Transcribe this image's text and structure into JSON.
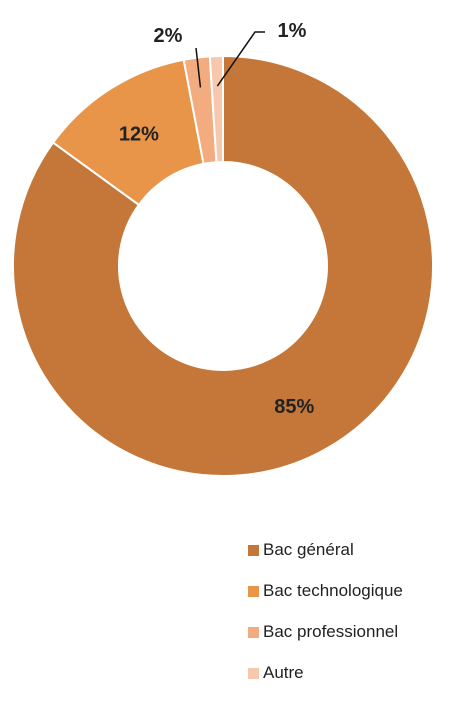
{
  "chart_data": {
    "type": "pie",
    "variant": "donut",
    "categories": [
      "Bac général",
      "Bac technologique",
      "Bac professionnel",
      "Autre"
    ],
    "values": [
      85,
      12,
      2,
      1
    ],
    "data_labels": [
      "85%",
      "12%",
      "2%",
      "1%"
    ],
    "colors": [
      "#C47738",
      "#E8954A",
      "#F2AC80",
      "#F7C8AE"
    ],
    "legend_position": "bottom-right"
  }
}
